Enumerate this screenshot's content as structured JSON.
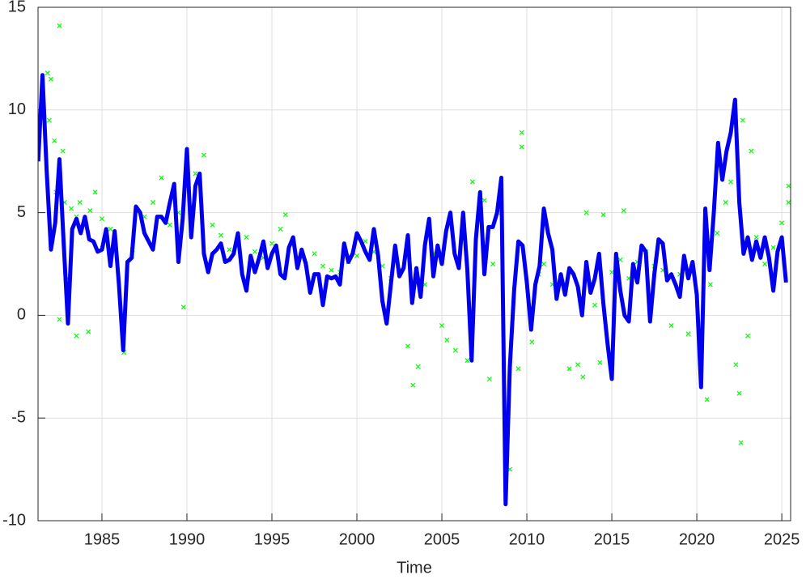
{
  "chart_data": {
    "type": "line",
    "x_label": "Time",
    "xlim": [
      1981.24,
      2025.52
    ],
    "ylim": [
      -10,
      15
    ],
    "xticks": [
      1985,
      1990,
      1995,
      2000,
      2005,
      2010,
      2015,
      2020,
      2025
    ],
    "yticks": [
      -10,
      -5,
      0,
      5,
      10,
      15
    ],
    "grid": true,
    "series": [
      {
        "type": "scatter",
        "color": "#00ff00",
        "x": [
          1982.5,
          1981.8,
          1982,
          1981.9,
          1982.2,
          1982.7,
          1982.3,
          1982.8,
          1983.2,
          1983.5,
          1983.7,
          1984,
          1984.3,
          1984.6,
          1985,
          1985.5,
          1982.5,
          1983.5,
          1984.2,
          1983,
          1986.3,
          1986.8,
          1987.5,
          1988,
          1988.5,
          1989,
          1989.5,
          1989.8,
          1990.5,
          1991,
          1991.5,
          1992,
          1992.5,
          1993,
          1993.5,
          1994,
          1994.5,
          1995,
          1995.5,
          1995.8,
          1996.5,
          1997,
          1997.5,
          1998,
          1998.5,
          1999,
          1999.5,
          2000,
          2000.5,
          2001,
          2001.5,
          2002,
          2002.5,
          2003,
          2003.3,
          2003.6,
          2004,
          2004.5,
          2005,
          2005.3,
          2005.8,
          2006.5,
          2006.8,
          2007.5,
          2007.8,
          2008,
          2008.5,
          2009,
          2009.5,
          2009.7,
          2009.7,
          2010.3,
          2010.7,
          2011,
          2011.5,
          2012,
          2012.5,
          2013,
          2013.3,
          2013.5,
          2014,
          2014.3,
          2014.5,
          2015,
          2015.5,
          2015.7,
          2016,
          2016.5,
          2017,
          2017.5,
          2018,
          2018.5,
          2019,
          2019.5,
          2020.2,
          2020.6,
          2020.8,
          2021.2,
          2021.7,
          2022,
          2022.3,
          2022.5,
          2022.6,
          2022.7,
          2023,
          2023.2,
          2023.5,
          2024,
          2024.5,
          2025,
          2025.4,
          2025.4
        ],
        "values": [
          14.1,
          11.8,
          11.5,
          9.5,
          8.5,
          8,
          6,
          5.5,
          5.2,
          4.8,
          5.5,
          4.4,
          5.1,
          6,
          4.7,
          4.2,
          -0.2,
          -1,
          -0.8,
          1.8,
          -1.8,
          3.2,
          4.8,
          5.5,
          6.7,
          4.4,
          5,
          0.4,
          6.9,
          7.8,
          4.4,
          3.9,
          3.2,
          3.5,
          3.8,
          3.1,
          2.8,
          3.5,
          4.2,
          4.9,
          2.8,
          2.5,
          3,
          2.4,
          2.2,
          2.1,
          2.6,
          2.9,
          3.6,
          3.1,
          2.4,
          1.8,
          2.2,
          -1.5,
          -3.4,
          -2.5,
          1.5,
          3,
          -0.5,
          -1.2,
          -1.7,
          -2.2,
          6.5,
          5.6,
          -3.1,
          2.5,
          5,
          -7.5,
          -2.6,
          8.9,
          8.2,
          -1.3,
          2,
          2.5,
          1.5,
          1.8,
          -2.6,
          -2.4,
          -3,
          5,
          0.5,
          -2.3,
          4.9,
          2.1,
          2.7,
          5.1,
          1.8,
          2.6,
          3.1,
          2.4,
          2.2,
          -0.5,
          2,
          -0.9,
          -1.8,
          -4.1,
          1.5,
          4,
          5.5,
          6.5,
          -2.4,
          -3.8,
          -6.2,
          9.5,
          -1,
          8,
          3.8,
          2.5,
          3.3,
          4.5,
          6.3,
          5.5
        ]
      },
      {
        "type": "line",
        "color": "#0000ee",
        "x": [
          1981.25,
          1981.5,
          1981.75,
          1982,
          1982.25,
          1982.5,
          1982.75,
          1983,
          1983.25,
          1983.5,
          1983.75,
          1984,
          1984.25,
          1984.5,
          1984.75,
          1985,
          1985.25,
          1985.5,
          1985.75,
          1986,
          1986.25,
          1986.5,
          1986.75,
          1987,
          1987.25,
          1987.5,
          1987.75,
          1988,
          1988.25,
          1988.5,
          1988.75,
          1989,
          1989.25,
          1989.5,
          1989.75,
          1990,
          1990.25,
          1990.5,
          1990.75,
          1991,
          1991.25,
          1991.5,
          1991.75,
          1992,
          1992.25,
          1992.5,
          1992.75,
          1993,
          1993.25,
          1993.5,
          1993.75,
          1994,
          1994.25,
          1994.5,
          1994.75,
          1995,
          1995.25,
          1995.5,
          1995.75,
          1996,
          1996.25,
          1996.5,
          1996.75,
          1997,
          1997.25,
          1997.5,
          1997.75,
          1998,
          1998.25,
          1998.5,
          1998.75,
          1999,
          1999.25,
          1999.5,
          1999.75,
          2000,
          2000.25,
          2000.5,
          2000.75,
          2001,
          2001.25,
          2001.5,
          2001.75,
          2002,
          2002.25,
          2002.5,
          2002.75,
          2003,
          2003.25,
          2003.5,
          2003.75,
          2004,
          2004.25,
          2004.5,
          2004.75,
          2005,
          2005.25,
          2005.5,
          2005.75,
          2006,
          2006.25,
          2006.5,
          2006.75,
          2007,
          2007.25,
          2007.5,
          2007.75,
          2008,
          2008.25,
          2008.5,
          2008.75,
          2009,
          2009.25,
          2009.5,
          2009.75,
          2010,
          2010.25,
          2010.5,
          2010.75,
          2011,
          2011.25,
          2011.5,
          2011.75,
          2012,
          2012.25,
          2012.5,
          2012.75,
          2013,
          2013.25,
          2013.5,
          2013.75,
          2014,
          2014.25,
          2014.5,
          2014.75,
          2015,
          2015.25,
          2015.5,
          2015.75,
          2016,
          2016.25,
          2016.5,
          2016.75,
          2017,
          2017.25,
          2017.5,
          2017.75,
          2018,
          2018.25,
          2018.5,
          2018.75,
          2019,
          2019.25,
          2019.5,
          2019.75,
          2020,
          2020.25,
          2020.5,
          2020.75,
          2021,
          2021.25,
          2021.5,
          2021.75,
          2022,
          2022.25,
          2022.5,
          2022.75,
          2023,
          2023.25,
          2023.5,
          2023.75,
          2024,
          2024.25,
          2024.5,
          2024.75,
          2025,
          2025.25
        ],
        "values": [
          7.5,
          11.7,
          7,
          3.2,
          4.5,
          7.6,
          3.5,
          -0.4,
          4.2,
          4.7,
          4,
          4.8,
          3.7,
          3.6,
          3.1,
          3.2,
          4.2,
          2.4,
          4.1,
          1.5,
          -1.7,
          2.6,
          2.8,
          5.3,
          5,
          4,
          3.6,
          3.2,
          4.8,
          4.8,
          4.5,
          5.5,
          6.4,
          2.6,
          4.7,
          8.1,
          3.8,
          6.3,
          6.9,
          3,
          2.1,
          3,
          3.2,
          3.5,
          2.6,
          2.7,
          3,
          4,
          2,
          1.2,
          2.9,
          2.1,
          2.8,
          3.6,
          2.3,
          3,
          3.4,
          2,
          1.8,
          3.3,
          3.8,
          2.3,
          3.2,
          2.5,
          1.1,
          2,
          2,
          0.5,
          1.9,
          1.8,
          1.9,
          1.5,
          3.5,
          2.6,
          3,
          4,
          3.6,
          3.1,
          2.7,
          4.2,
          2.9,
          0.7,
          -0.4,
          1.5,
          3.4,
          1.9,
          2.3,
          3.9,
          0.6,
          2.3,
          0.9,
          3.4,
          4.7,
          1.9,
          3.4,
          2.5,
          4.1,
          5,
          3,
          2.3,
          5,
          2.2,
          -2.2,
          3.7,
          6,
          2,
          4.3,
          4.3,
          5,
          6.7,
          -9.2,
          -2.5,
          1.2,
          3.6,
          3.4,
          1.6,
          -0.7,
          1.5,
          2.4,
          5.2,
          4,
          3.2,
          0.8,
          2,
          1,
          2.3,
          2,
          1.4,
          0,
          2.6,
          1.1,
          1.8,
          3,
          0.6,
          -1.4,
          -3.1,
          3,
          1.2,
          0,
          -0.3,
          2.5,
          1.6,
          3.4,
          3.1,
          -0.3,
          2,
          3.7,
          3.5,
          1.7,
          2,
          1.5,
          0.9,
          2.9,
          1.8,
          2.6,
          1,
          -3.5,
          5.2,
          2.2,
          5,
          8.4,
          6.6,
          8,
          8.9,
          10.5,
          5.5,
          3,
          3.8,
          2.7,
          3.6,
          2.8,
          3.8,
          2.8,
          1.2,
          3.1,
          3.8,
          1.6
        ]
      }
    ]
  }
}
